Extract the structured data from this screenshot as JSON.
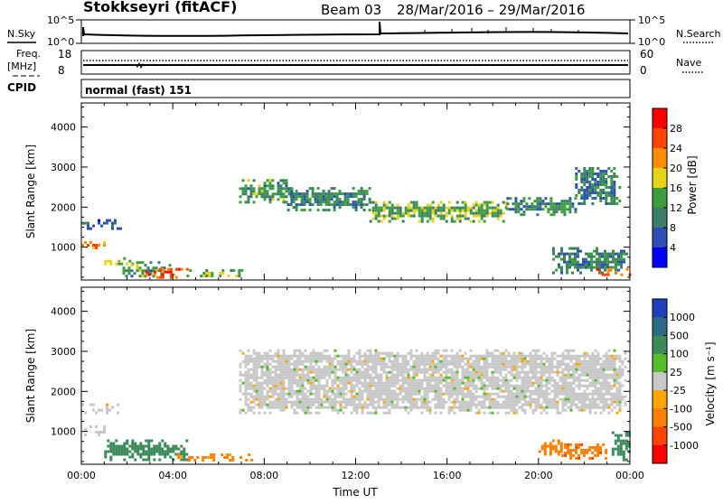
{
  "header": {
    "station": "Stokkseyri (fitACF)",
    "beam": "Beam 03",
    "date_range": "28/Mar/2016 – 29/Mar/2016"
  },
  "top_panels": {
    "noise": {
      "left_label": "N.Sky",
      "right_label": "N.Search",
      "left_ticks": [
        "10^5",
        "10^0"
      ],
      "right_ticks": [
        "10^5",
        "10^0"
      ]
    },
    "freq": {
      "left_label_1": "Freq.",
      "left_label_2": "[MHz]",
      "left_ticks": [
        "18",
        "8"
      ],
      "right_label": "Nave",
      "right_ticks": [
        "60",
        "0"
      ]
    },
    "cpid": {
      "label": "CPID",
      "text": "normal (fast) 151"
    }
  },
  "chart_data": [
    {
      "type": "heatmap",
      "title": "",
      "xlabel": "",
      "ylabel": "Slant Range [km]",
      "x_ticks": [
        "00:00",
        "04:00",
        "08:00",
        "12:00",
        "16:00",
        "20:00",
        "00:00"
      ],
      "y_ticks": [
        1000,
        2000,
        3000,
        4000
      ],
      "xlim": [
        0,
        24
      ],
      "ylim": [
        180,
        4600
      ],
      "colorbar": {
        "label": "Power [dB]",
        "ticks": [
          4,
          8,
          12,
          16,
          20,
          24,
          28
        ],
        "colors": [
          "#0000ff",
          "#2b4fb3",
          "#3b7f66",
          "#3c9e3c",
          "#e8d21a",
          "#ff8c00",
          "#ff4500",
          "#ff0000"
        ]
      },
      "regions": [
        {
          "x": [
            0.0,
            1.7
          ],
          "y": [
            1450,
            1700
          ],
          "value": 7
        },
        {
          "x": [
            0.0,
            1.1
          ],
          "y": [
            900,
            1150
          ],
          "value": 22
        },
        {
          "x": [
            1.0,
            2.3
          ],
          "y": [
            550,
            750
          ],
          "value": 18
        },
        {
          "x": [
            1.8,
            3.9
          ],
          "y": [
            300,
            650
          ],
          "value": 12
        },
        {
          "x": [
            2.8,
            4.6
          ],
          "y": [
            250,
            480
          ],
          "value": 27
        },
        {
          "x": [
            4.6,
            7.0
          ],
          "y": [
            250,
            450
          ],
          "value": 14
        },
        {
          "x": [
            6.9,
            9.2
          ],
          "y": [
            2100,
            2700
          ],
          "value": 12
        },
        {
          "x": [
            9.0,
            12.6
          ],
          "y": [
            1900,
            2500
          ],
          "value": 11
        },
        {
          "x": [
            12.6,
            18.6
          ],
          "y": [
            1650,
            2150
          ],
          "value": 14
        },
        {
          "x": [
            18.6,
            21.6
          ],
          "y": [
            1800,
            2250
          ],
          "value": 11
        },
        {
          "x": [
            21.6,
            23.5
          ],
          "y": [
            2100,
            3000
          ],
          "value": 9
        },
        {
          "x": [
            20.6,
            23.9
          ],
          "y": [
            350,
            1000
          ],
          "value": 10
        },
        {
          "x": [
            22.4,
            24.0
          ],
          "y": [
            280,
            480
          ],
          "value": 25
        }
      ]
    },
    {
      "type": "heatmap",
      "title": "",
      "xlabel": "Time UT",
      "ylabel": "Slant Range [km]",
      "x_ticks": [
        "00:00",
        "04:00",
        "08:00",
        "12:00",
        "16:00",
        "20:00",
        "00:00"
      ],
      "y_ticks": [
        1000,
        2000,
        3000,
        4000
      ],
      "xlim": [
        0,
        24
      ],
      "ylim": [
        180,
        4600
      ],
      "colorbar": {
        "label": "Velocity [m s⁻¹]",
        "ticks": [
          1000,
          500,
          100,
          25,
          -25,
          -100,
          -500,
          -1000
        ],
        "colors": [
          "#1f3fbf",
          "#2d6a8a",
          "#3a8a5a",
          "#55bb2a",
          "#c8c8c8",
          "#ffa500",
          "#ff7f00",
          "#ff4500",
          "#ff0000"
        ]
      },
      "regions": [
        {
          "x": [
            0.0,
            1.6
          ],
          "y": [
            1450,
            1700
          ],
          "value": 0
        },
        {
          "x": [
            0.0,
            1.0
          ],
          "y": [
            900,
            1150
          ],
          "value": 0
        },
        {
          "x": [
            1.0,
            4.6
          ],
          "y": [
            300,
            800
          ],
          "value": 200
        },
        {
          "x": [
            4.2,
            7.5
          ],
          "y": [
            250,
            450
          ],
          "value": -150
        },
        {
          "x": [
            6.9,
            23.8
          ],
          "y": [
            1450,
            3050
          ],
          "value": 0
        },
        {
          "x": [
            20.0,
            21.0
          ],
          "y": [
            400,
            800
          ],
          "value": -300
        },
        {
          "x": [
            21.0,
            23.0
          ],
          "y": [
            300,
            700
          ],
          "value": -400
        },
        {
          "x": [
            23.2,
            24.0
          ],
          "y": [
            300,
            1000
          ],
          "value": 300
        }
      ]
    }
  ]
}
